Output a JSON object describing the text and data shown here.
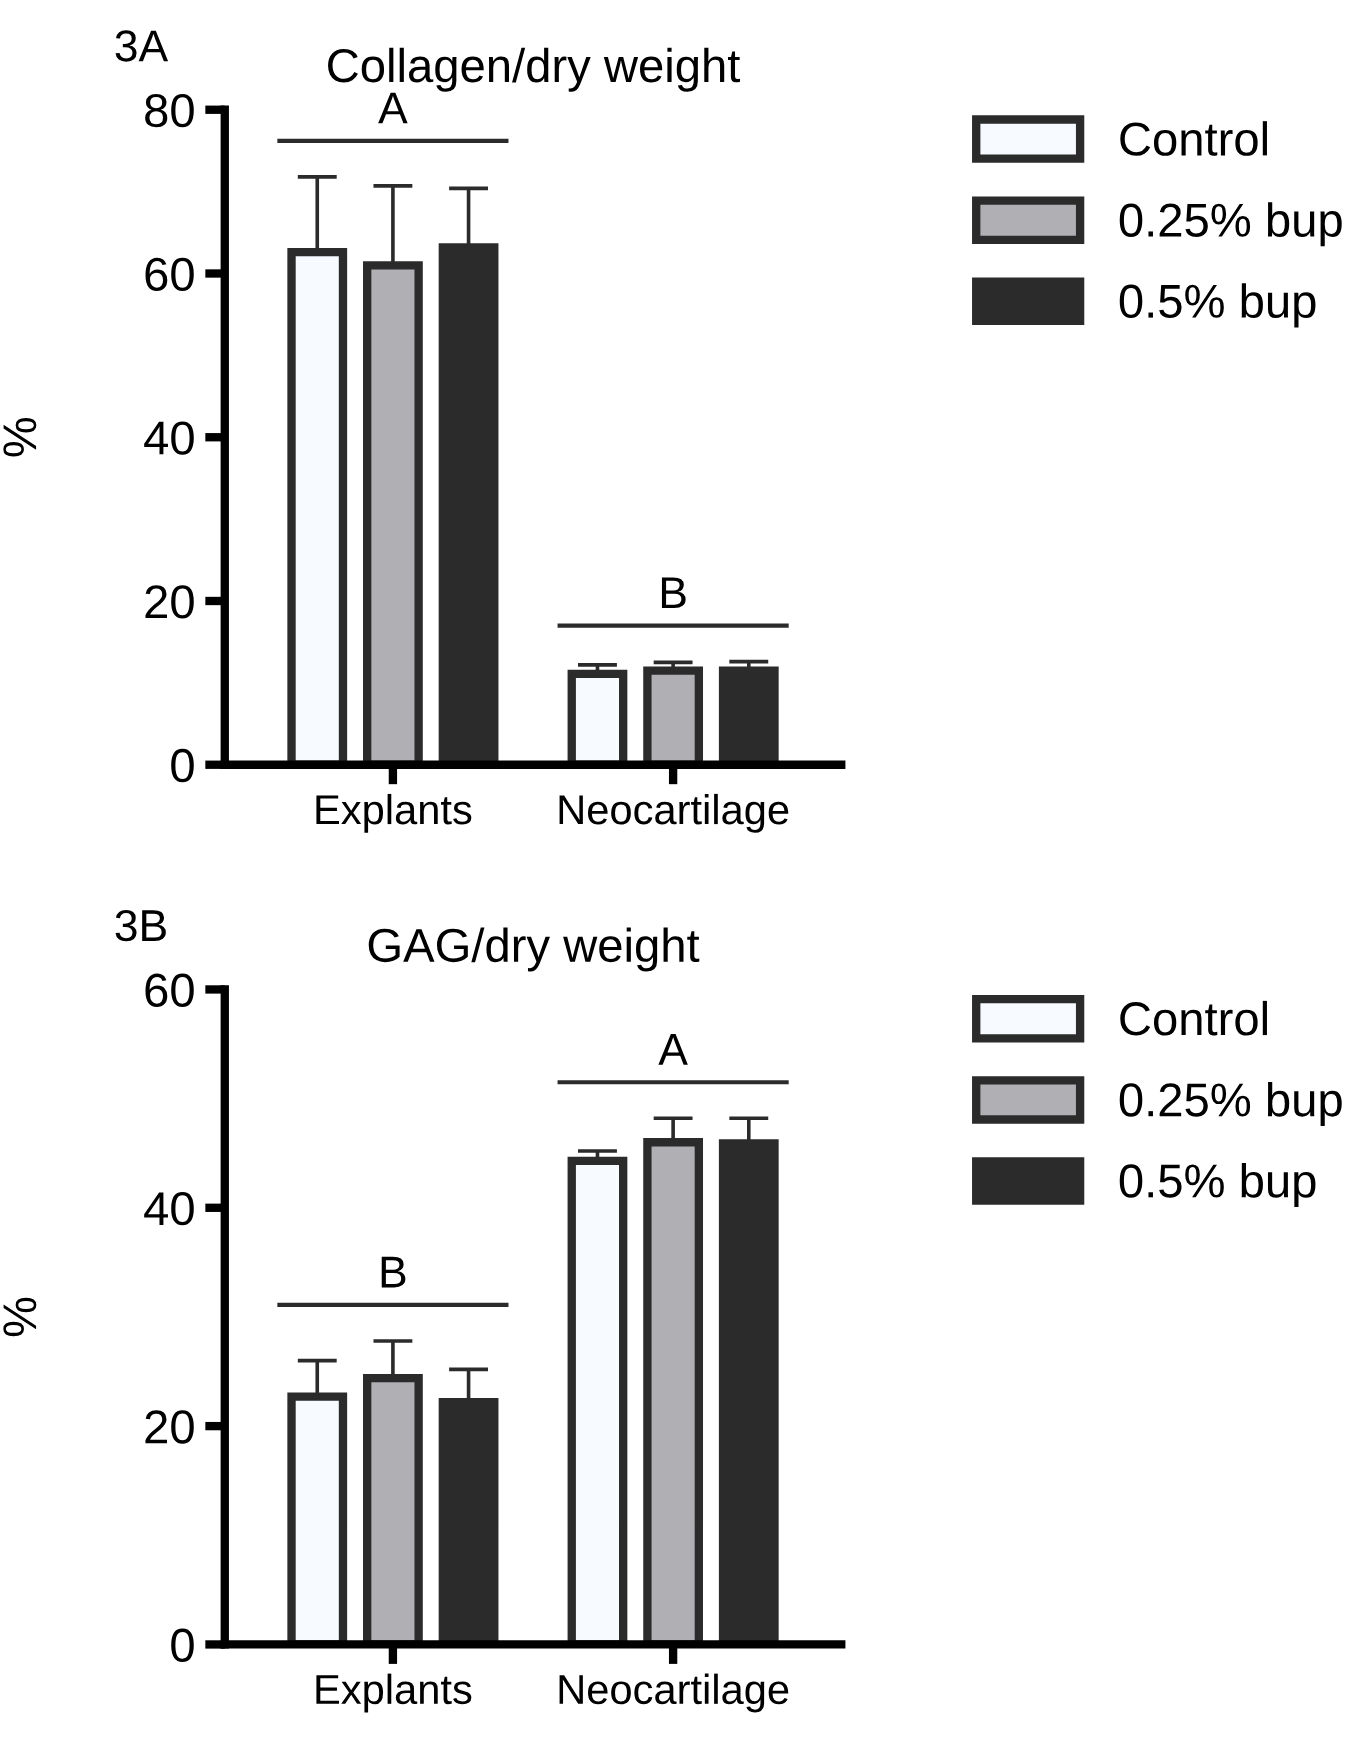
{
  "chart_data": [
    {
      "type": "bar",
      "title": "Collagen/dry weight",
      "ylabel": "%",
      "categories": [
        "Explants",
        "Neocartilage"
      ],
      "series": [
        {
          "name": "Control",
          "color": "#f7fbff",
          "values": [
            62.6,
            11.1
          ],
          "errors": [
            [
              62.6,
              71.8
            ],
            [
              11.1,
              12.2
            ]
          ]
        },
        {
          "name": "0.25% bup",
          "color": "#b0afb4",
          "values": [
            61.0,
            11.5
          ],
          "errors": [
            [
              61.0,
              70.7
            ],
            [
              11.5,
              12.5
            ]
          ]
        },
        {
          "name": "0.5% bup",
          "color": "#2b2b2b",
          "values": [
            63.2,
            11.5
          ],
          "errors": [
            [
              63.2,
              70.4
            ],
            [
              11.5,
              12.6
            ]
          ]
        }
      ],
      "ylim": [
        0,
        80
      ],
      "yticks": [
        0,
        20,
        40,
        60,
        80
      ],
      "grid": false,
      "legend": "top right",
      "annotations": [
        "3A",
        "A",
        "B"
      ]
    },
    {
      "type": "bar",
      "title": "GAG/dry weight",
      "ylabel": "%",
      "categories": [
        "Explants",
        "Neocartilage"
      ],
      "series": [
        {
          "name": "Control",
          "color": "#f7fbff",
          "values": [
            22.7,
            44.3
          ],
          "errors": [
            [
              22.7,
              26.0
            ],
            [
              44.3,
              45.2
            ]
          ]
        },
        {
          "name": "0.25% bup",
          "color": "#b0afb4",
          "values": [
            24.4,
            46.0
          ],
          "errors": [
            [
              24.4,
              27.8
            ],
            [
              46.0,
              48.2
            ]
          ]
        },
        {
          "name": "0.5% bup",
          "color": "#2b2b2b",
          "values": [
            22.2,
            45.9
          ],
          "errors": [
            [
              22.2,
              25.2
            ],
            [
              45.9,
              48.2
            ]
          ]
        }
      ],
      "ylim": [
        0,
        60
      ],
      "yticks": [
        0,
        20,
        40,
        60
      ],
      "grid": false,
      "legend": "top right",
      "annotations": [
        "3B",
        "B",
        "A"
      ]
    }
  ]
}
